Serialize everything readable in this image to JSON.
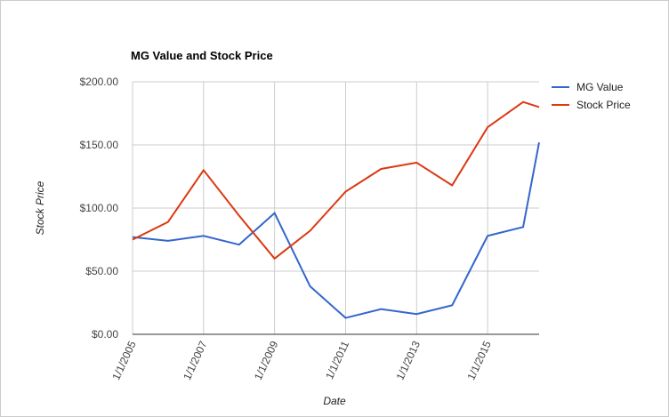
{
  "chart_data": {
    "type": "line",
    "title": "MG Value and Stock Price",
    "x_label": "Date",
    "y_label": "Stock Price",
    "x": [
      2005,
      2006,
      2007,
      2008,
      2009,
      2010,
      2011,
      2012,
      2013,
      2014,
      2015,
      2016,
      2016.45
    ],
    "xlim": [
      2005,
      2016.45
    ],
    "xticks": [
      {
        "value": 2005,
        "label": "1/1/2005"
      },
      {
        "value": 2007,
        "label": "1/1/2007"
      },
      {
        "value": 2009,
        "label": "1/1/2009"
      },
      {
        "value": 2011,
        "label": "1/1/2011"
      },
      {
        "value": 2013,
        "label": "1/1/2013"
      },
      {
        "value": 2015,
        "label": "1/1/2015"
      }
    ],
    "ylim": [
      0,
      200
    ],
    "yticks": [
      {
        "value": 0,
        "label": "$0.00"
      },
      {
        "value": 50,
        "label": "$50.00"
      },
      {
        "value": 100,
        "label": "$100.00"
      },
      {
        "value": 150,
        "label": "$150.00"
      },
      {
        "value": 200,
        "label": "$200.00"
      }
    ],
    "grid": true,
    "legend": "right",
    "series": [
      {
        "name": "MG Value",
        "color": "#3366cc",
        "values": [
          77,
          74,
          78,
          71,
          96,
          38,
          13,
          20,
          16,
          23,
          78,
          85,
          152
        ]
      },
      {
        "name": "Stock Price",
        "color": "#dc3912",
        "values": [
          75,
          89,
          130,
          94,
          60,
          82,
          113,
          131,
          136,
          118,
          164,
          184,
          180
        ]
      }
    ]
  }
}
